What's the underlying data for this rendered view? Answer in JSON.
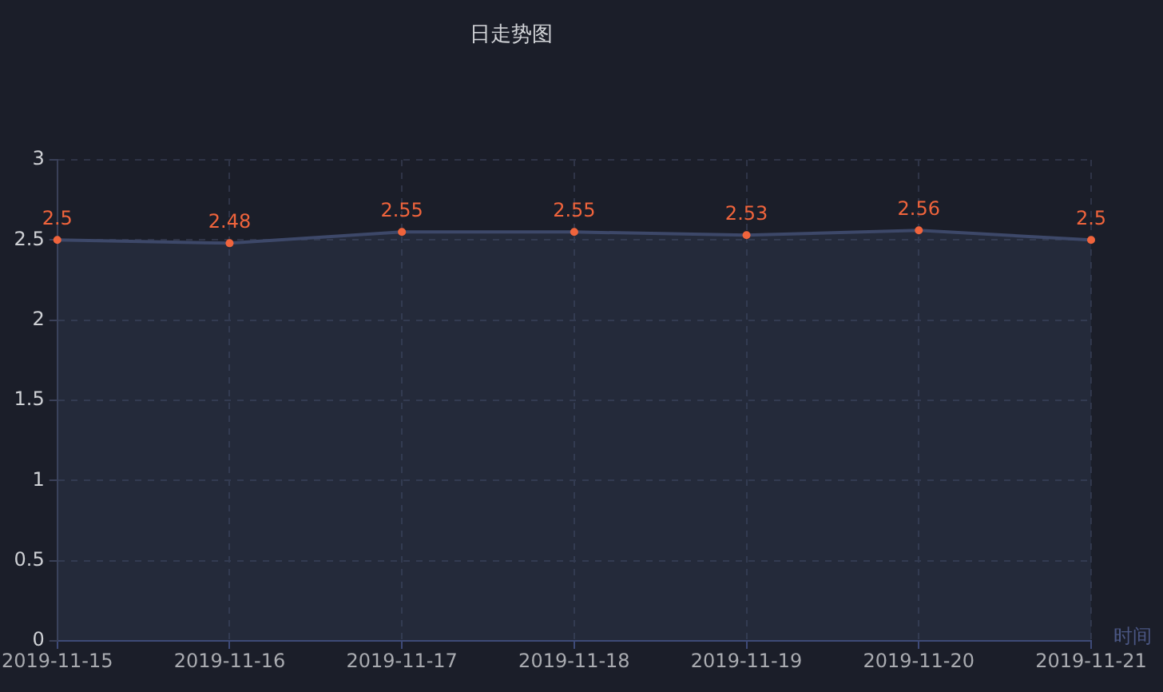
{
  "chart_data": {
    "type": "area",
    "title": "日走势图",
    "xlabel": "时间",
    "categories": [
      "2019-11-15",
      "2019-11-16",
      "2019-11-17",
      "2019-11-18",
      "2019-11-19",
      "2019-11-20",
      "2019-11-21"
    ],
    "values": [
      2.5,
      2.48,
      2.55,
      2.55,
      2.53,
      2.56,
      2.5
    ],
    "color": "#f0643c",
    "ylim": [
      0,
      3
    ],
    "yticks": [
      0,
      0.5,
      1,
      1.5,
      2,
      2.5,
      3
    ],
    "grid": true,
    "marker": "circle",
    "data_labels": true
  }
}
